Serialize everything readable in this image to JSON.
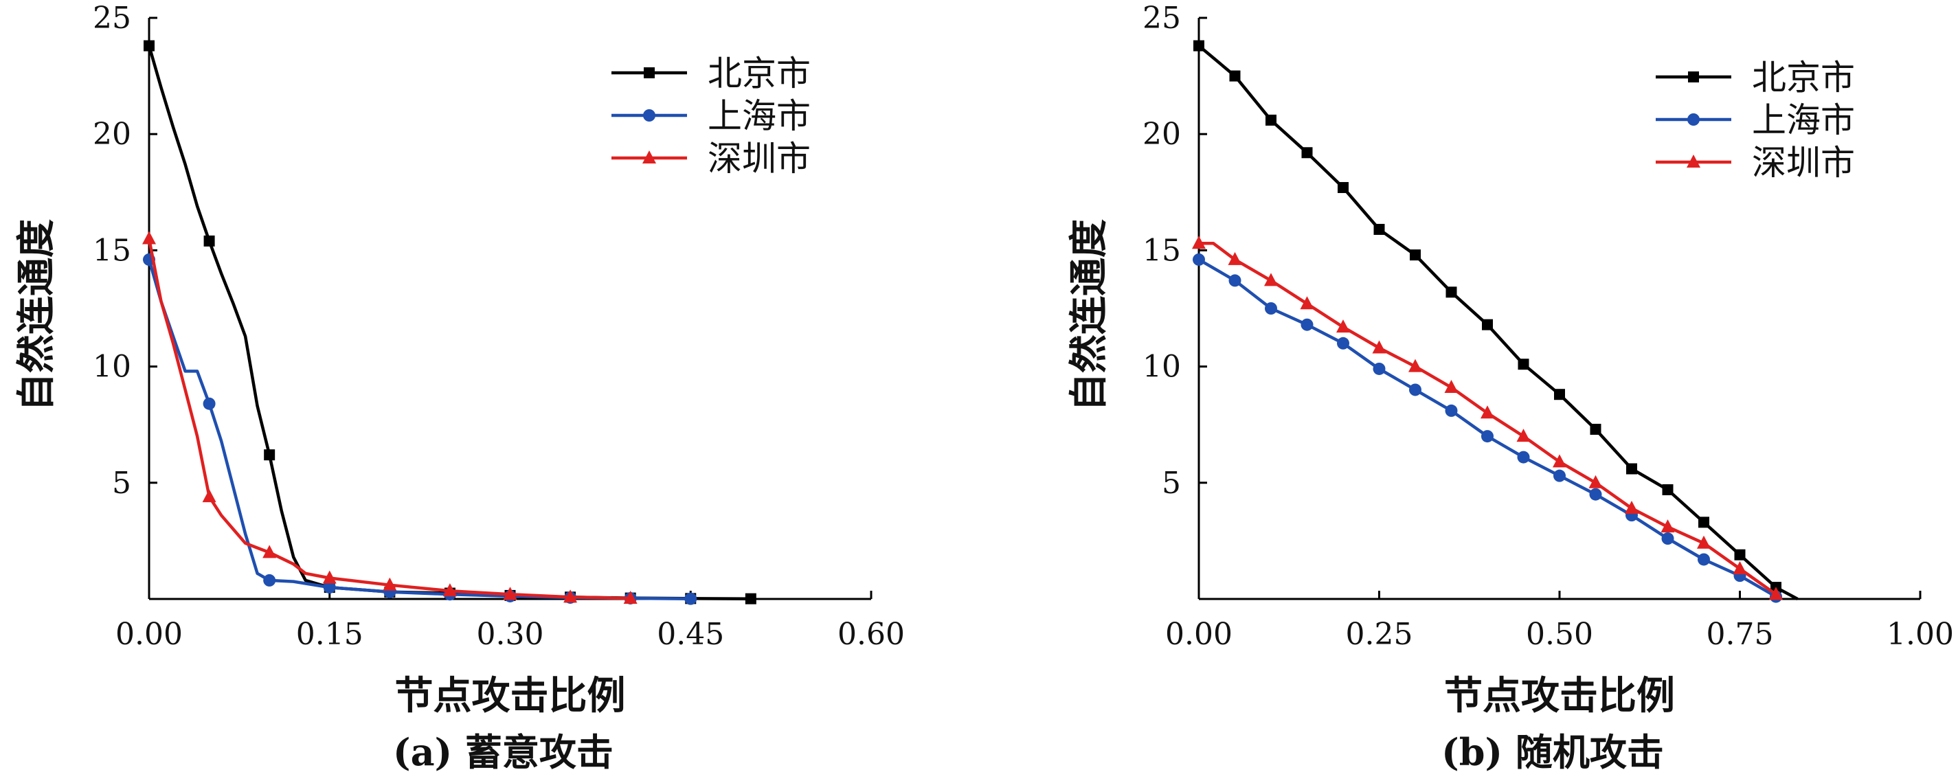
{
  "chart_data": [
    {
      "type": "line",
      "caption": "(a) 蓄意攻击",
      "xlabel": "节点攻击比例",
      "ylabel": "自然连通度",
      "xlim": [
        0,
        0.6
      ],
      "ylim": [
        0,
        25
      ],
      "xticks": [
        "0.00",
        "0.15",
        "0.30",
        "0.45",
        "0.60"
      ],
      "yticks": [
        "5",
        "10",
        "15",
        "20",
        "25"
      ],
      "legend_position": "top-right",
      "series": [
        {
          "name": "北京市",
          "color": "#000000",
          "marker": "square",
          "points": [
            [
              0,
              23.8
            ],
            [
              0.01,
              22.0
            ],
            [
              0.02,
              20.3
            ],
            [
              0.03,
              18.7
            ],
            [
              0.04,
              16.9
            ],
            [
              0.05,
              15.4
            ],
            [
              0.06,
              14.0
            ],
            [
              0.07,
              12.7
            ],
            [
              0.08,
              11.3
            ],
            [
              0.09,
              8.3
            ],
            [
              0.1,
              6.2
            ],
            [
              0.11,
              3.8
            ],
            [
              0.12,
              1.8
            ],
            [
              0.13,
              0.8
            ],
            [
              0.15,
              0.5
            ],
            [
              0.2,
              0.3
            ],
            [
              0.25,
              0.25
            ],
            [
              0.3,
              0.15
            ],
            [
              0.35,
              0.08
            ],
            [
              0.4,
              0.04
            ],
            [
              0.45,
              0.02
            ],
            [
              0.5,
              0.01
            ]
          ],
          "marker_x": [
            0,
            0.05,
            0.1,
            0.15,
            0.2,
            0.25,
            0.3,
            0.35,
            0.4,
            0.45,
            0.5
          ]
        },
        {
          "name": "上海市",
          "color": "#1f4fb0",
          "marker": "circle",
          "points": [
            [
              0,
              14.6
            ],
            [
              0.01,
              12.8
            ],
            [
              0.02,
              11.3
            ],
            [
              0.03,
              9.8
            ],
            [
              0.04,
              9.8
            ],
            [
              0.05,
              8.4
            ],
            [
              0.06,
              6.8
            ],
            [
              0.07,
              4.8
            ],
            [
              0.08,
              2.8
            ],
            [
              0.09,
              1.1
            ],
            [
              0.1,
              0.8
            ],
            [
              0.12,
              0.75
            ],
            [
              0.15,
              0.5
            ],
            [
              0.2,
              0.3
            ],
            [
              0.25,
              0.2
            ],
            [
              0.3,
              0.12
            ],
            [
              0.35,
              0.06
            ],
            [
              0.4,
              0.03
            ],
            [
              0.45,
              0.01
            ]
          ],
          "marker_x": [
            0,
            0.05,
            0.1,
            0.15,
            0.2,
            0.25,
            0.3,
            0.35,
            0.4,
            0.45
          ]
        },
        {
          "name": "深圳市",
          "color": "#e02020",
          "marker": "triangle",
          "points": [
            [
              0,
              15.5
            ],
            [
              0.01,
              12.8
            ],
            [
              0.02,
              11.0
            ],
            [
              0.03,
              9.0
            ],
            [
              0.04,
              7.0
            ],
            [
              0.05,
              4.4
            ],
            [
              0.06,
              3.6
            ],
            [
              0.07,
              3.0
            ],
            [
              0.08,
              2.4
            ],
            [
              0.09,
              2.2
            ],
            [
              0.1,
              2.0
            ],
            [
              0.12,
              1.5
            ],
            [
              0.13,
              1.1
            ],
            [
              0.15,
              0.9
            ],
            [
              0.2,
              0.6
            ],
            [
              0.25,
              0.35
            ],
            [
              0.3,
              0.2
            ],
            [
              0.35,
              0.08
            ],
            [
              0.4,
              0.03
            ]
          ],
          "marker_x": [
            0,
            0.05,
            0.1,
            0.15,
            0.2,
            0.25,
            0.3,
            0.35,
            0.4
          ]
        }
      ]
    },
    {
      "type": "line",
      "caption": "(b) 随机攻击",
      "xlabel": "节点攻击比例",
      "ylabel": "自然连通度",
      "xlim": [
        0,
        1.0
      ],
      "ylim": [
        0,
        25
      ],
      "xticks": [
        "0.00",
        "0.25",
        "0.50",
        "0.75",
        "1.00"
      ],
      "yticks": [
        "5",
        "10",
        "15",
        "20",
        "25"
      ],
      "legend_position": "top-right",
      "series": [
        {
          "name": "北京市",
          "color": "#000000",
          "marker": "square",
          "points": [
            [
              0,
              23.8
            ],
            [
              0.05,
              22.5
            ],
            [
              0.1,
              20.6
            ],
            [
              0.15,
              19.2
            ],
            [
              0.2,
              17.7
            ],
            [
              0.25,
              15.9
            ],
            [
              0.3,
              14.8
            ],
            [
              0.35,
              13.2
            ],
            [
              0.4,
              11.8
            ],
            [
              0.45,
              10.1
            ],
            [
              0.5,
              8.8
            ],
            [
              0.55,
              7.3
            ],
            [
              0.6,
              5.6
            ],
            [
              0.65,
              4.7
            ],
            [
              0.7,
              3.3
            ],
            [
              0.75,
              1.9
            ],
            [
              0.8,
              0.5
            ],
            [
              0.83,
              0.0
            ]
          ],
          "marker_x": [
            0,
            0.05,
            0.1,
            0.15,
            0.2,
            0.25,
            0.3,
            0.35,
            0.4,
            0.45,
            0.5,
            0.55,
            0.6,
            0.65,
            0.7,
            0.75,
            0.8
          ]
        },
        {
          "name": "上海市",
          "color": "#1f4fb0",
          "marker": "circle",
          "points": [
            [
              0,
              14.6
            ],
            [
              0.05,
              13.7
            ],
            [
              0.1,
              12.5
            ],
            [
              0.15,
              11.8
            ],
            [
              0.2,
              11.0
            ],
            [
              0.25,
              9.9
            ],
            [
              0.3,
              9.0
            ],
            [
              0.35,
              8.1
            ],
            [
              0.4,
              7.0
            ],
            [
              0.45,
              6.1
            ],
            [
              0.5,
              5.3
            ],
            [
              0.55,
              4.5
            ],
            [
              0.6,
              3.6
            ],
            [
              0.65,
              2.6
            ],
            [
              0.7,
              1.7
            ],
            [
              0.75,
              1.0
            ],
            [
              0.8,
              0.1
            ]
          ],
          "marker_x": [
            0,
            0.05,
            0.1,
            0.15,
            0.2,
            0.25,
            0.3,
            0.35,
            0.4,
            0.45,
            0.5,
            0.55,
            0.6,
            0.65,
            0.7,
            0.75,
            0.8
          ]
        },
        {
          "name": "深圳市",
          "color": "#e02020",
          "marker": "triangle",
          "points": [
            [
              0,
              15.3
            ],
            [
              0.02,
              15.3
            ],
            [
              0.05,
              14.6
            ],
            [
              0.1,
              13.7
            ],
            [
              0.15,
              12.7
            ],
            [
              0.2,
              11.7
            ],
            [
              0.25,
              10.8
            ],
            [
              0.3,
              10.0
            ],
            [
              0.35,
              9.1
            ],
            [
              0.4,
              8.0
            ],
            [
              0.45,
              7.0
            ],
            [
              0.5,
              5.9
            ],
            [
              0.55,
              5.0
            ],
            [
              0.6,
              3.9
            ],
            [
              0.65,
              3.1
            ],
            [
              0.7,
              2.4
            ],
            [
              0.75,
              1.3
            ],
            [
              0.8,
              0.2
            ]
          ],
          "marker_x": [
            0,
            0.05,
            0.1,
            0.15,
            0.2,
            0.25,
            0.3,
            0.35,
            0.4,
            0.45,
            0.5,
            0.55,
            0.6,
            0.65,
            0.7,
            0.75,
            0.8
          ]
        }
      ]
    }
  ]
}
